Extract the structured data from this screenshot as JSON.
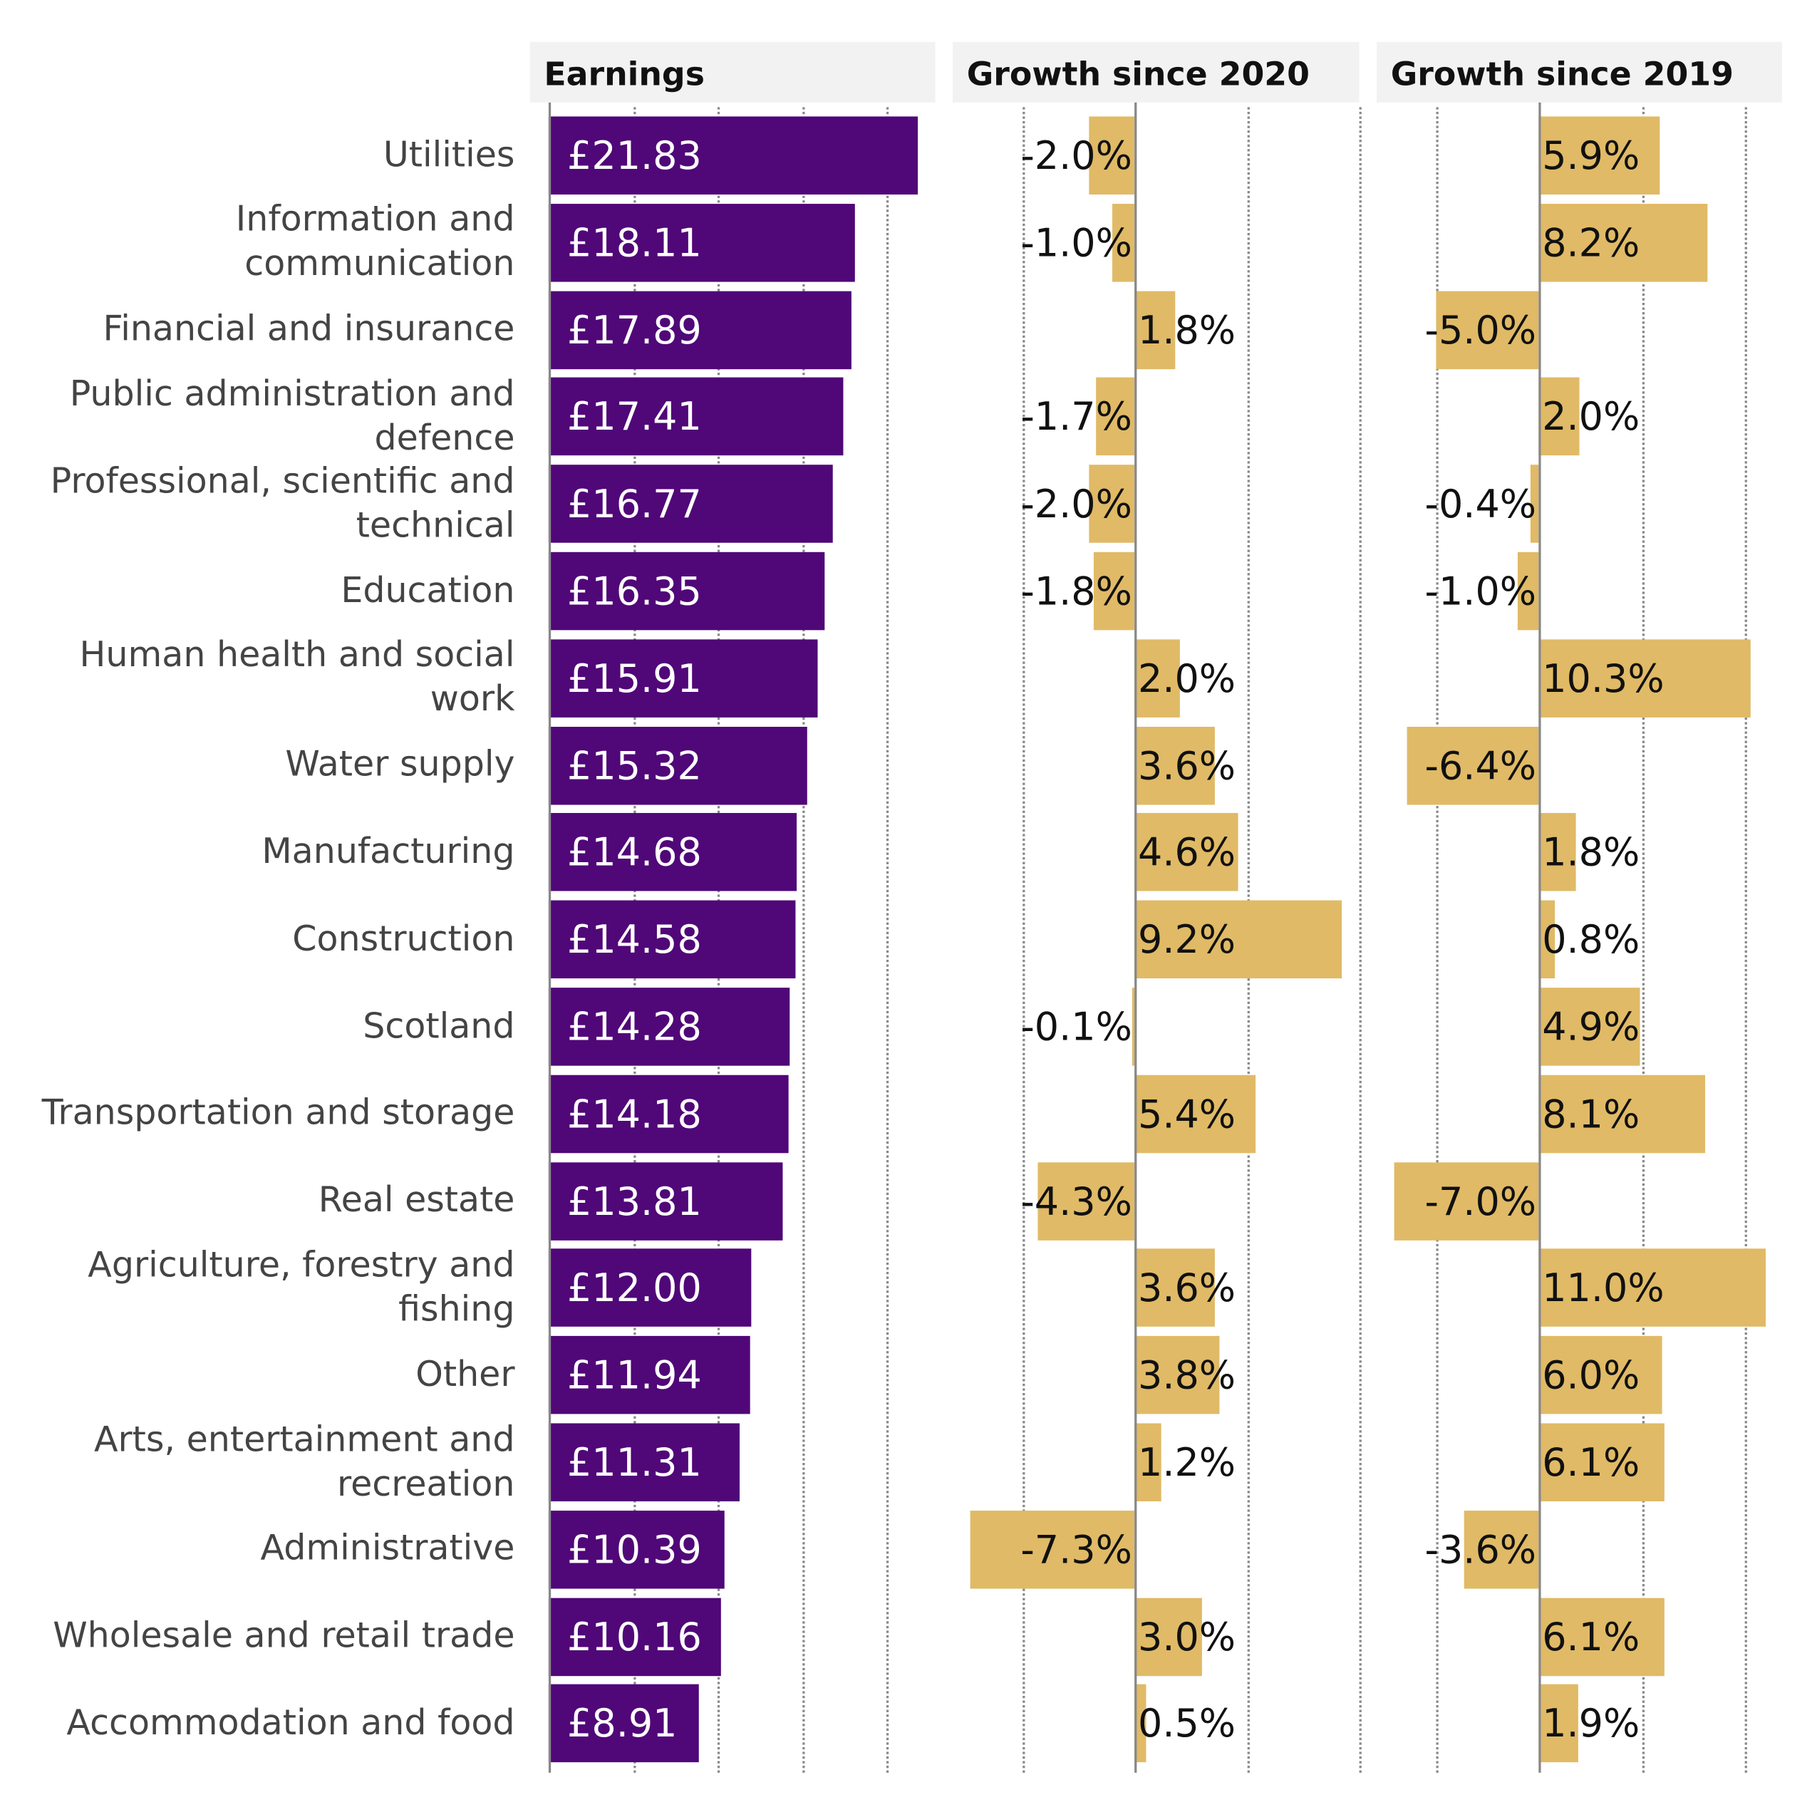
{
  "panels": {
    "earnings": "Earnings",
    "growth_2020": "Growth since 2020",
    "growth_2019": "Growth since 2019"
  },
  "colors": {
    "earnings_bar": "#500778",
    "growth_bar": "#E0BA66"
  },
  "chart_data": [
    {
      "type": "bar",
      "orientation": "horizontal",
      "title": "Earnings",
      "categories": [
        "Utilities",
        "Information and communication",
        "Financial and insurance",
        "Public administration and defence",
        "Professional, scientific and technical",
        "Education",
        "Human health and social work",
        "Water supply",
        "Manufacturing",
        "Construction",
        "Scotland",
        "Transportation and storage",
        "Real estate",
        "Agriculture, forestry and fishing",
        "Other",
        "Arts, entertainment and recreation",
        "Administrative",
        "Wholesale and retail trade",
        "Accommodation and food"
      ],
      "values": [
        21.83,
        18.11,
        17.89,
        17.41,
        16.77,
        16.35,
        15.91,
        15.32,
        14.68,
        14.58,
        14.28,
        14.18,
        13.81,
        12.0,
        11.94,
        11.31,
        10.39,
        10.16,
        8.91
      ],
      "labels": [
        "£21.83",
        "£18.11",
        "£17.89",
        "£17.41",
        "£16.77",
        "£16.35",
        "£15.91",
        "£15.32",
        "£14.68",
        "£14.58",
        "£14.28",
        "£14.18",
        "£13.81",
        "£12.00",
        "£11.94",
        "£11.31",
        "£10.39",
        "£10.16",
        "£8.91"
      ],
      "xlim": [
        0,
        25
      ],
      "grid": true
    },
    {
      "type": "bar",
      "orientation": "horizontal",
      "title": "Growth since 2020",
      "values": [
        -2.0,
        -1.0,
        1.8,
        -1.7,
        -2.0,
        -1.8,
        2.0,
        3.6,
        4.6,
        9.2,
        -0.1,
        5.4,
        -4.3,
        3.6,
        3.8,
        1.2,
        -7.3,
        3.0,
        0.5
      ],
      "labels": [
        "-2.0%",
        "-1.0%",
        "1.8%",
        "-1.7%",
        "-2.0%",
        "-1.8%",
        "2.0%",
        "3.6%",
        "4.6%",
        "9.2%",
        "-0.1%",
        "5.4%",
        "-4.3%",
        "3.6%",
        "3.8%",
        "1.2%",
        "-7.3%",
        "3.0%",
        "0.5%"
      ],
      "xlim": [
        -7.5,
        12.5
      ],
      "grid": true
    },
    {
      "type": "bar",
      "orientation": "horizontal",
      "title": "Growth since 2019",
      "values": [
        5.9,
        8.2,
        -5.0,
        2.0,
        -0.4,
        -1.0,
        10.3,
        -6.4,
        1.8,
        0.8,
        4.9,
        8.1,
        -7.0,
        11.0,
        6.0,
        6.1,
        -3.6,
        6.1,
        1.9
      ],
      "labels": [
        "5.9%",
        "8.2%",
        "-5.0%",
        "2.0%",
        "-0.4%",
        "-1.0%",
        "10.3%",
        "-6.4%",
        "1.8%",
        "0.8%",
        "4.9%",
        "8.1%",
        "-7.0%",
        "11.0%",
        "6.0%",
        "6.1%",
        "-3.6%",
        "6.1%",
        "1.9%"
      ],
      "xlim": [
        -7.5,
        12.5
      ],
      "grid": true
    }
  ]
}
